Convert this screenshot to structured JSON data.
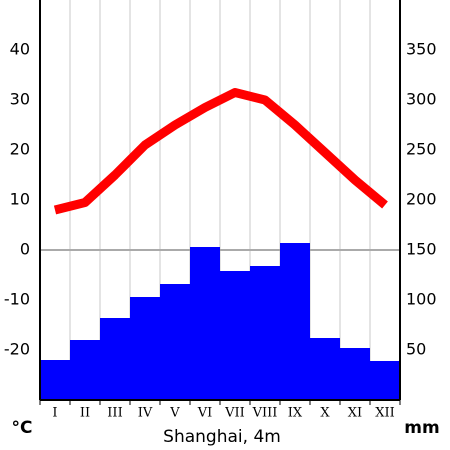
{
  "chart_data": {
    "type": "climate",
    "title": "Shanghai, 4m",
    "ylabel": "°C",
    "y2label": "mm",
    "categories": [
      "I",
      "II",
      "III",
      "IV",
      "V",
      "VI",
      "VII",
      "VIII",
      "IX",
      "X",
      "XI",
      "XII"
    ],
    "series": [
      {
        "type": "bar",
        "axis": "y2",
        "color": "#0000ff",
        "values": [
          40,
          60,
          82,
          103,
          116,
          153,
          129,
          134,
          157,
          62,
          52,
          39
        ]
      },
      {
        "type": "line",
        "axis": "y",
        "color": "#ff0000",
        "values": [
          8,
          9.5,
          15,
          21,
          25,
          28.5,
          31.5,
          30,
          25,
          19.5,
          14,
          9
        ]
      }
    ],
    "ylim": [
      -30,
      50
    ],
    "yticks": [
      -20,
      -10,
      0,
      10,
      20,
      30,
      40
    ],
    "y2lim": [
      0,
      400
    ],
    "y2ticks": [
      50,
      100,
      150,
      200,
      250,
      300,
      350
    ],
    "grid": true
  }
}
